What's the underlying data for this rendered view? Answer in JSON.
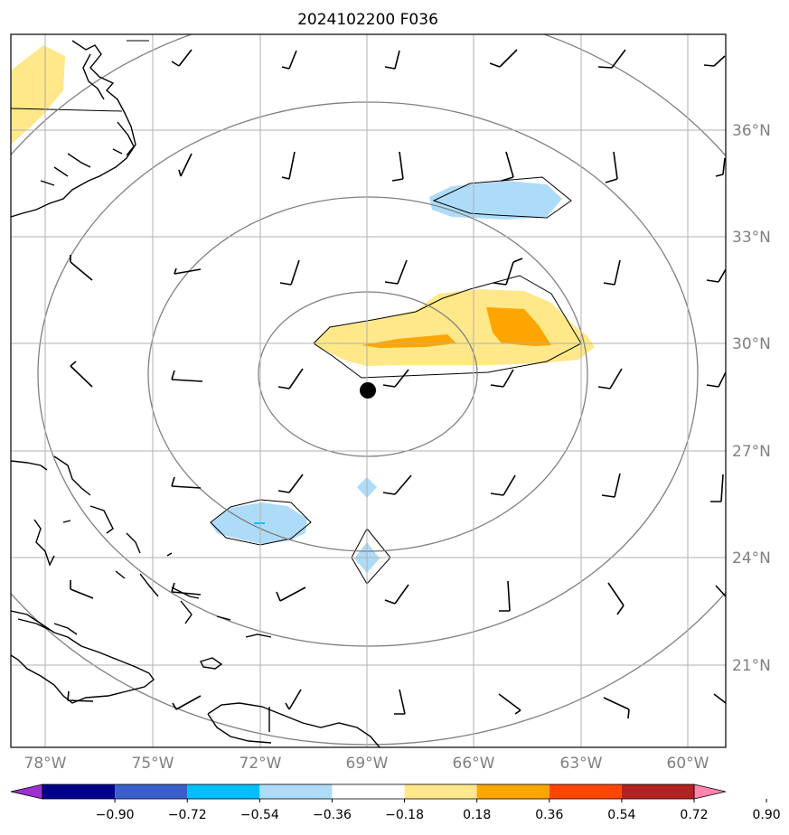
{
  "title": "2024102200 F036",
  "map": {
    "lon_range": [
      -79,
      -59
    ],
    "lat_range": [
      18.7,
      38.7
    ],
    "lat_ticks": [
      "36°N",
      "33°N",
      "30°N",
      "27°N",
      "24°N",
      "21°N"
    ],
    "lon_ticks": [
      "78°W",
      "75°W",
      "72°W",
      "69°W",
      "66°W",
      "63°W",
      "60°W"
    ],
    "center_marker": {
      "lon": -69,
      "lat": 28.7
    },
    "range_rings_deg": [
      3,
      6,
      9,
      12
    ],
    "gridlines": true
  },
  "colorbar": {
    "levels": [
      "−0.90",
      "−0.72",
      "−0.54",
      "−0.36",
      "−0.18",
      "0.18",
      "0.36",
      "0.54",
      "0.72",
      "0.90"
    ],
    "colors": [
      "#9b30d0",
      "#00008b",
      "#3a5fcd",
      "#00bfff",
      "#aedcf8",
      "#ffffff",
      "#ffe88a",
      "#ffa500",
      "#ff4500",
      "#b22222",
      "#ff85ad"
    ]
  },
  "shaded_regions": [
    {
      "name": "light-blue-northeast",
      "color": "#aedcf8",
      "value_range": "−0.36 to −0.18"
    },
    {
      "name": "yellow-east-central",
      "color": "#ffe88a",
      "value_range": "0.18 to 0.36"
    },
    {
      "name": "orange-east-central",
      "color": "#ffa500",
      "value_range": "0.36 to 0.54"
    },
    {
      "name": "light-blue-southwest",
      "color": "#aedcf8",
      "value_range": "−0.36 to −0.18"
    },
    {
      "name": "light-blue-south",
      "color": "#aedcf8",
      "value_range": "−0.36 to −0.18"
    },
    {
      "name": "yellow-northwest-corner",
      "color": "#ffe88a",
      "value_range": "0.18 to 0.36"
    }
  ]
}
